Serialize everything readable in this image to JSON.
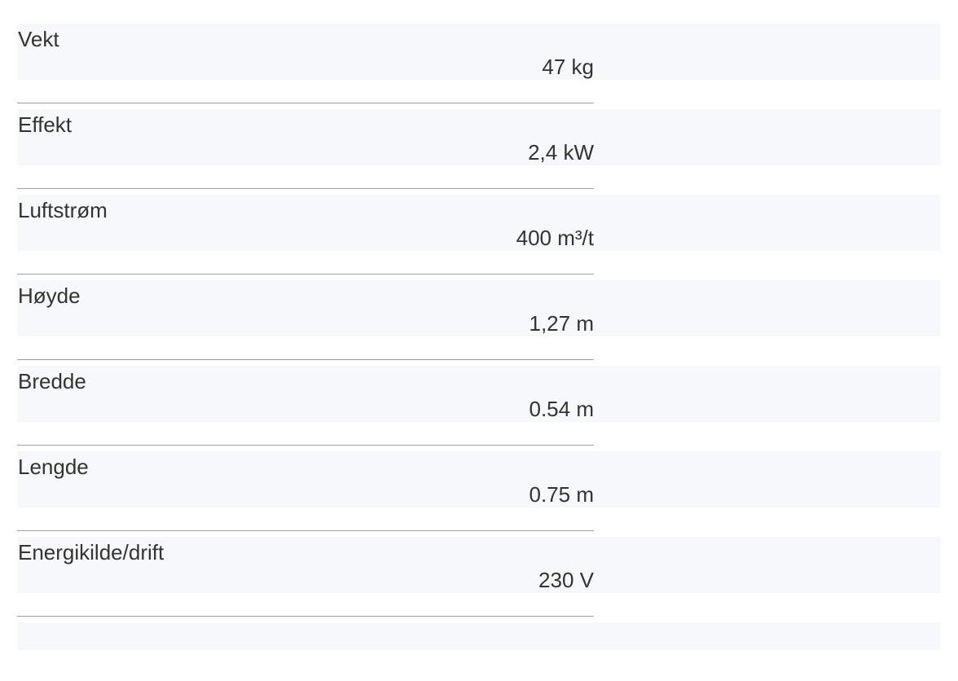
{
  "specs": [
    {
      "label": "Vekt",
      "value": "47 kg"
    },
    {
      "label": "Effekt",
      "value": "2,4 kW"
    },
    {
      "label": "Luftstrøm",
      "value": "400 m³/t"
    },
    {
      "label": "Høyde",
      "value": "1,27 m"
    },
    {
      "label": "Bredde",
      "value": "0.54 m"
    },
    {
      "label": "Lengde",
      "value": "0.75 m"
    },
    {
      "label": "Energikilde/drift",
      "value": "230 V"
    }
  ]
}
